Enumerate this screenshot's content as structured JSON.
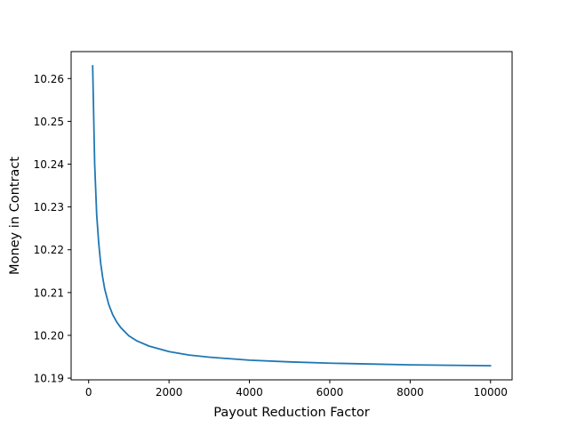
{
  "chart_data": {
    "type": "line",
    "title": "",
    "xlabel": "Payout Reduction Factor",
    "ylabel": "Money in Contract",
    "xlim": [
      -436,
      10536
    ],
    "ylim": [
      10.1896,
      10.2663
    ],
    "xticks": [
      0,
      2000,
      4000,
      6000,
      8000,
      10000
    ],
    "xtick_labels": [
      "0",
      "2000",
      "4000",
      "6000",
      "8000",
      "10000"
    ],
    "yticks": [
      10.19,
      10.2,
      10.21,
      10.22,
      10.23,
      10.24,
      10.25,
      10.26
    ],
    "ytick_labels": [
      "10.19",
      "10.20",
      "10.21",
      "10.22",
      "10.23",
      "10.24",
      "10.25",
      "10.26"
    ],
    "grid": false,
    "legend": "none",
    "series": [
      {
        "color": "#1f77b4",
        "x": [
          100,
          150,
          200,
          250,
          300,
          350,
          400,
          500,
          600,
          700,
          800,
          1000,
          1200,
          1500,
          2000,
          2500,
          3000,
          4000,
          5000,
          6000,
          7000,
          8000,
          9000,
          10000
        ],
        "y": [
          10.263,
          10.24,
          10.2282,
          10.2216,
          10.2168,
          10.2135,
          10.2108,
          10.2072,
          10.2048,
          10.2031,
          10.2018,
          10.1999,
          10.1987,
          10.1975,
          10.1962,
          10.1954,
          10.1949,
          10.1942,
          10.1938,
          10.1935,
          10.1933,
          10.1931,
          10.193,
          10.1929
        ]
      }
    ]
  }
}
